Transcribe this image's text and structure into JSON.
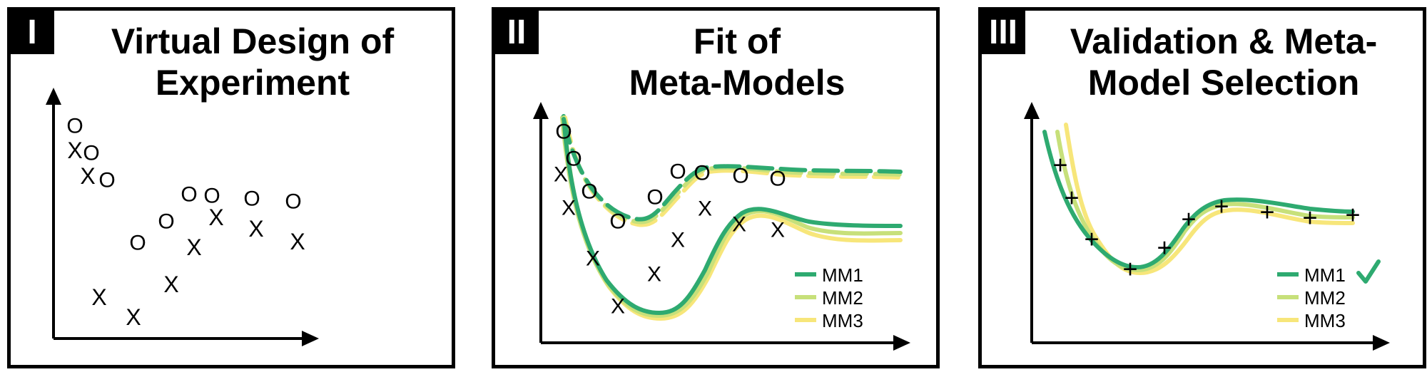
{
  "panels": [
    {
      "number": "I",
      "title_line1": "Virtual Design of",
      "title_line2": "Experiment"
    },
    {
      "number": "II",
      "title_line1": "Fit of",
      "title_line2": "Meta-Models"
    },
    {
      "number": "III",
      "title_line1": "Validation & Meta-",
      "title_line2": "Model Selection"
    }
  ],
  "legend": [
    "MM1",
    "MM2",
    "MM3"
  ],
  "colors": {
    "mm1": "#2eaa70",
    "mm2": "#c7e07a",
    "mm3": "#f7e67a",
    "ink": "#000000"
  },
  "markers": {
    "x": "X",
    "o": "O",
    "plus": "+"
  },
  "selected_icon": "checkmark-icon"
}
